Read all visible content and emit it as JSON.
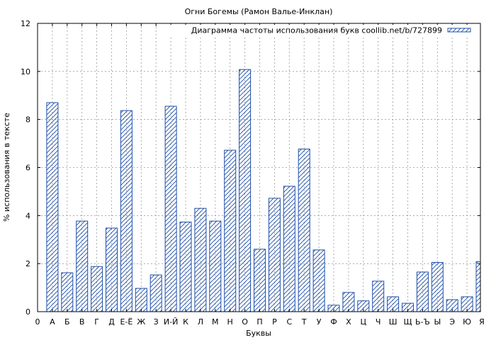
{
  "chart_data": {
    "type": "bar",
    "title": "Огни Богемы (Рамон Валье-Инклан)",
    "xlabel": "Буквы",
    "ylabel": "% использования в тексте",
    "ylim": [
      0,
      12
    ],
    "yticks": [
      0,
      2,
      4,
      6,
      8,
      10,
      12
    ],
    "x_origin_label": "0",
    "grid": true,
    "legend_position": "top-right",
    "bar_color": "#1f4fa8",
    "categories": [
      "А",
      "Б",
      "В",
      "Г",
      "Д",
      "Е-Ё",
      "Ж",
      "З",
      "И-Й",
      "К",
      "Л",
      "М",
      "Н",
      "О",
      "П",
      "Р",
      "С",
      "Т",
      "У",
      "Ф",
      "Х",
      "Ц",
      "Ч",
      "Ш",
      "Щ",
      "Ь-Ъ",
      "Ы",
      "Э",
      "Ю",
      "Я"
    ],
    "series": [
      {
        "name": "Диаграмма частоты использования букв coollib.net/b/727899",
        "values": [
          8.7,
          1.62,
          3.77,
          1.88,
          3.48,
          8.37,
          0.97,
          1.53,
          8.55,
          3.73,
          4.3,
          3.77,
          6.72,
          10.08,
          2.6,
          4.72,
          5.22,
          6.77,
          2.57,
          0.27,
          0.8,
          0.45,
          1.27,
          0.62,
          0.35,
          1.65,
          2.05,
          0.5,
          0.62,
          2.08
        ]
      }
    ]
  }
}
